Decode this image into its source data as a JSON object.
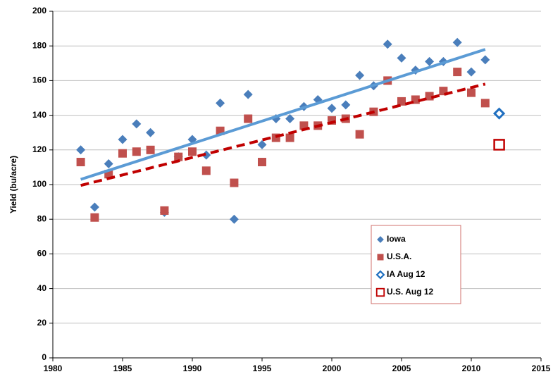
{
  "chart_data": {
    "type": "scatter",
    "ylabel": "Yield (bu/acre)",
    "xlim": [
      1980,
      2015
    ],
    "xticks": [
      1980,
      1985,
      1990,
      1995,
      2000,
      2005,
      2010,
      2015
    ],
    "ylim": [
      0,
      200
    ],
    "yticks": [
      0,
      20,
      40,
      60,
      80,
      100,
      120,
      140,
      160,
      180,
      200
    ],
    "grid": true,
    "legend": "lower right",
    "series": [
      {
        "name": "Iowa",
        "color": "#4a7ebb",
        "marker": "diamond",
        "x": [
          1982,
          1983,
          1984,
          1985,
          1986,
          1987,
          1988,
          1989,
          1990,
          1991,
          1992,
          1993,
          1994,
          1995,
          1996,
          1997,
          1998,
          1999,
          2000,
          2001,
          2002,
          2003,
          2004,
          2005,
          2006,
          2007,
          2008,
          2009,
          2010,
          2011
        ],
        "values": [
          120,
          87,
          112,
          126,
          135,
          130,
          84,
          116,
          126,
          117,
          147,
          80,
          152,
          123,
          138,
          138,
          145,
          149,
          144,
          146,
          163,
          157,
          181,
          173,
          166,
          171,
          171,
          182,
          165,
          172
        ]
      },
      {
        "name": "U.S.A.",
        "color": "#c0504d",
        "marker": "square",
        "x": [
          1982,
          1983,
          1984,
          1985,
          1986,
          1987,
          1988,
          1989,
          1990,
          1991,
          1992,
          1993,
          1994,
          1995,
          1996,
          1997,
          1998,
          1999,
          2000,
          2001,
          2002,
          2003,
          2004,
          2005,
          2006,
          2007,
          2008,
          2009,
          2010,
          2011
        ],
        "values": [
          113,
          81,
          106,
          118,
          119,
          120,
          85,
          116,
          119,
          108,
          131,
          101,
          138,
          113,
          127,
          127,
          134,
          134,
          137,
          138,
          129,
          142,
          160,
          148,
          149,
          151,
          154,
          165,
          153,
          147
        ]
      },
      {
        "name": "IA Aug 12",
        "color": "#1f6fc0",
        "marker": "diamond-open",
        "x": [
          2012
        ],
        "values": [
          141
        ]
      },
      {
        "name": "U.S. Aug 12",
        "color": "#c00000",
        "marker": "square-open",
        "x": [
          2012
        ],
        "values": [
          123
        ]
      }
    ],
    "trend_lines": [
      {
        "color": "#5b9bd5",
        "dashed": false,
        "x": [
          1982,
          2011
        ],
        "values": [
          103,
          178
        ]
      },
      {
        "color": "#c00000",
        "dashed": true,
        "x": [
          1982,
          2011
        ],
        "values": [
          99.5,
          158
        ]
      }
    ]
  }
}
